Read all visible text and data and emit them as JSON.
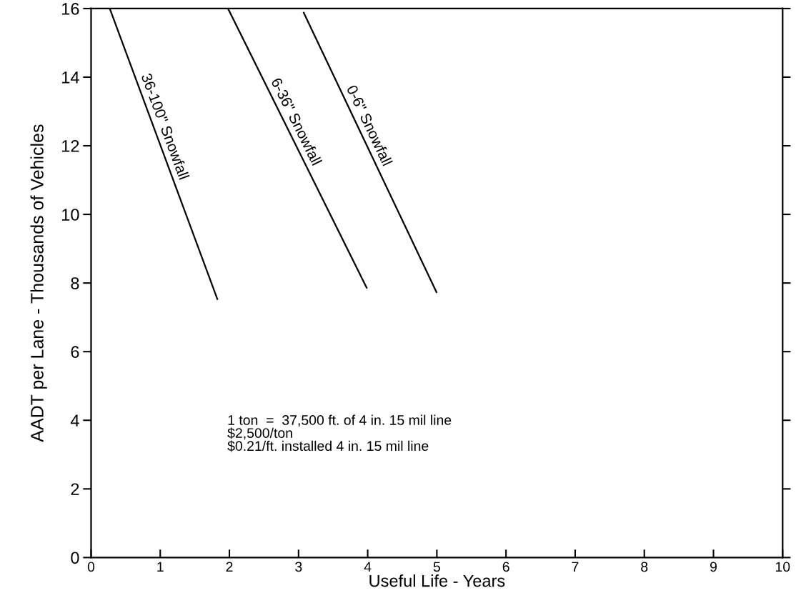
{
  "chart_data": {
    "type": "line",
    "xlabel": "Useful Life - Years",
    "ylabel": "AADT per Lane - Thousands of Vehicles",
    "series": [
      {
        "name": "36-100\" Snowfall",
        "color": "#000000",
        "x": [
          0.27,
          1.83
        ],
        "values": [
          16,
          7.51
        ]
      },
      {
        "name": "6-36\" Snowfall",
        "color": "#000000",
        "x": [
          1.98,
          3.99
        ],
        "values": [
          16,
          7.84
        ]
      },
      {
        "name": "0-6\" Snowfall",
        "color": "#000000",
        "x": [
          3.07,
          5.0
        ],
        "values": [
          15.9,
          7.71
        ]
      }
    ],
    "xlim": [
      0,
      10
    ],
    "ylim": [
      0,
      16
    ],
    "xticks": [
      0,
      1,
      2,
      3,
      4,
      5,
      6,
      7,
      8,
      9,
      10
    ],
    "yticks": [
      0,
      2,
      4,
      6,
      8,
      10,
      12,
      14,
      16
    ],
    "annotations": [
      "1 ton  =  37,500 ft. of 4 in. 15 mil line\n$2,500/ton\n$0.21/ft. installed 4 in. 15 mil line"
    ],
    "grid": false,
    "legend": false,
    "marker": "none",
    "line_style": "solid"
  }
}
